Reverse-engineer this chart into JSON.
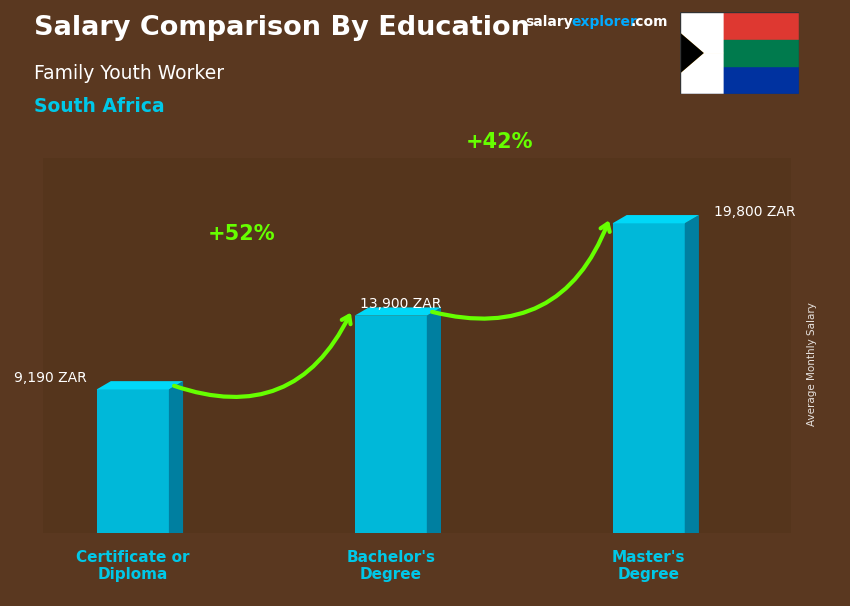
{
  "title_main": "Salary Comparison By Education",
  "title_sub": "Family Youth Worker",
  "title_country": "South Africa",
  "ylabel": "Average Monthly Salary",
  "categories": [
    "Certificate or\nDiploma",
    "Bachelor's\nDegree",
    "Master's\nDegree"
  ],
  "values": [
    9190,
    13900,
    19800
  ],
  "value_labels": [
    "9,190 ZAR",
    "13,900 ZAR",
    "19,800 ZAR"
  ],
  "pct_labels": [
    "+52%",
    "+42%"
  ],
  "bar_front_color": "#00b8d9",
  "bar_side_color": "#007fa0",
  "bar_top_color": "#00d8f8",
  "bg_color": "#5a3820",
  "text_white": "#ffffff",
  "text_cyan": "#00c8e8",
  "text_green": "#66ff00",
  "website_color_salary": "#ffffff",
  "website_color_explorer": "#00aaff",
  "website_color_com": "#ffffff",
  "bar_width": 0.28,
  "ylim_max": 24000,
  "bar_positions": [
    0.18,
    0.5,
    0.82
  ]
}
